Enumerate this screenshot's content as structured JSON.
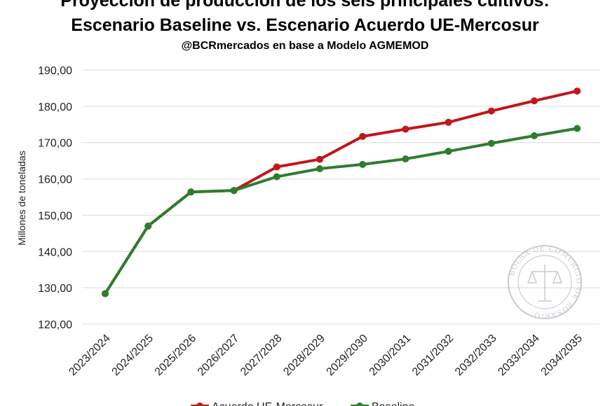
{
  "chart_data": {
    "type": "line",
    "title": "Proyección de producción de los seis principales cultivos:",
    "subtitle": "Escenario Baseline vs. Escenario Acuerdo UE-Mercosur",
    "source": "@BCRmercados en base a Modelo AGMEMOD",
    "ylabel": "Millones de toneladas",
    "xlabel": "",
    "ylim": [
      120,
      190
    ],
    "yticks": [
      120,
      130,
      140,
      150,
      160,
      170,
      180,
      190
    ],
    "ytick_labels": [
      "120,00",
      "130,00",
      "140,00",
      "150,00",
      "160,00",
      "170,00",
      "180,00",
      "190,00"
    ],
    "grid": true,
    "legend": "bottom",
    "categories": [
      "2023/2024",
      "2024/2025",
      "2025/2026",
      "2026/2027",
      "2027/2028",
      "2028/2029",
      "2029/2030",
      "2030/2031",
      "2031/2032",
      "2032/2033",
      "2033/2034",
      "2034/2035"
    ],
    "series": [
      {
        "name": "Acuerdo UE-Mercosur",
        "color": "#c0171c",
        "values": [
          128.4,
          147.0,
          156.4,
          156.8,
          163.3,
          165.4,
          171.7,
          173.7,
          175.6,
          178.7,
          181.5,
          184.2
        ]
      },
      {
        "name": "Baseline",
        "color": "#2e7d2e",
        "values": [
          128.4,
          147.0,
          156.4,
          156.8,
          160.6,
          162.8,
          164.0,
          165.5,
          167.6,
          169.8,
          171.9,
          173.9
        ]
      }
    ]
  },
  "seal": {
    "text": "BOLSA DE COMERCIO DE ROSARIO"
  }
}
